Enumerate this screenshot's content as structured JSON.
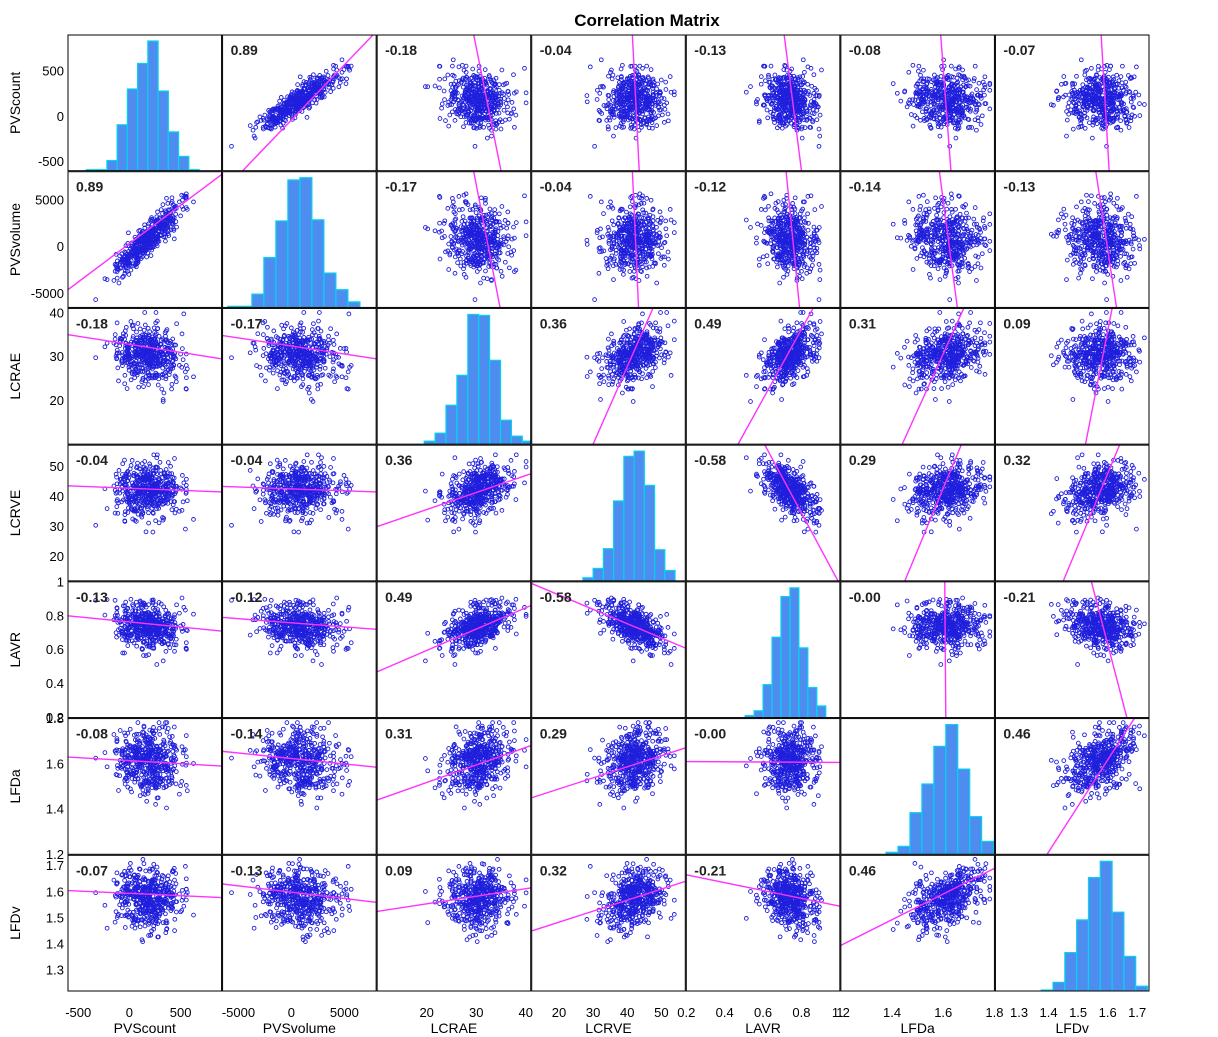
{
  "chart_data": {
    "type": "scatter",
    "title": "Correlation Matrix",
    "plot_kind": "scatter-matrix",
    "variables": [
      {
        "name": "PVScount",
        "range": [
          -600,
          900
        ],
        "y_ticks": [
          500,
          0,
          -500
        ],
        "x_ticks": [
          -500,
          0,
          500
        ]
      },
      {
        "name": "PVSvolume",
        "range": [
          -6500,
          8000
        ],
        "y_ticks": [
          5000,
          0,
          -5000
        ],
        "x_ticks": [
          -5000,
          0,
          5000
        ]
      },
      {
        "name": "LCRAE",
        "range": [
          10,
          41
        ],
        "y_ticks": [
          40,
          30,
          20
        ],
        "x_ticks": [
          20,
          30,
          40
        ]
      },
      {
        "name": "LCRVE",
        "range": [
          12,
          57
        ],
        "y_ticks": [
          50,
          40,
          30,
          20
        ],
        "x_ticks": [
          20,
          30,
          40,
          50
        ]
      },
      {
        "name": "LAVR",
        "range": [
          0.2,
          1.0
        ],
        "y_ticks": [
          1,
          0.8,
          0.6,
          0.4,
          0.2
        ],
        "x_ticks": [
          0.2,
          0.4,
          0.6,
          0.8,
          1
        ]
      },
      {
        "name": "LFDa",
        "range": [
          1.2,
          1.8
        ],
        "y_ticks": [
          1.8,
          1.6,
          1.4,
          1.2
        ],
        "x_ticks": [
          1.2,
          1.4,
          1.6,
          1.8
        ]
      },
      {
        "name": "LFDv",
        "range": [
          1.22,
          1.74
        ],
        "y_ticks": [
          1.7,
          1.6,
          1.5,
          1.4,
          1.3
        ],
        "x_ticks": [
          1.3,
          1.4,
          1.5,
          1.6,
          1.7
        ]
      }
    ],
    "x_tick_labels_per_column": [
      [
        "-500",
        "0",
        "500"
      ],
      [
        "-5000",
        "0",
        "5000"
      ],
      [
        "20",
        "30",
        "40"
      ],
      [
        "20",
        "30",
        "40",
        "50"
      ],
      [
        "0.2",
        "0.4",
        "0.6",
        "0.8",
        "1"
      ],
      [
        "1.2",
        "1.4",
        "1.6",
        "1.8"
      ],
      [
        "1.3",
        "1.4",
        "1.5",
        "1.6",
        "1.7"
      ]
    ],
    "correlations": [
      [
        null,
        0.89,
        -0.18,
        -0.04,
        -0.13,
        -0.08,
        -0.07
      ],
      [
        0.89,
        null,
        -0.17,
        -0.04,
        -0.12,
        -0.14,
        -0.13
      ],
      [
        -0.18,
        -0.17,
        null,
        0.36,
        0.49,
        0.31,
        0.09
      ],
      [
        -0.04,
        -0.04,
        0.36,
        null,
        -0.58,
        0.29,
        0.32
      ],
      [
        -0.13,
        -0.12,
        0.49,
        -0.58,
        null,
        -0.0,
        -0.21
      ],
      [
        -0.08,
        -0.14,
        0.31,
        0.29,
        -0.0,
        null,
        0.46
      ],
      [
        -0.07,
        -0.13,
        0.09,
        0.32,
        -0.21,
        0.46,
        null
      ]
    ],
    "correlation_labels": [
      [
        "",
        "0.89",
        "-0.18",
        "-0.04",
        "-0.13",
        "-0.08",
        "-0.07"
      ],
      [
        "0.89",
        "",
        "-0.17",
        "-0.04",
        "-0.12",
        "-0.14",
        "-0.13"
      ],
      [
        "-0.18",
        "-0.17",
        "",
        "0.36",
        "0.49",
        "0.31",
        "0.09"
      ],
      [
        "-0.04",
        "-0.04",
        "0.36",
        "",
        "-0.58",
        "0.29",
        "0.32"
      ],
      [
        "-0.13",
        "-0.12",
        "0.49",
        "-0.58",
        "",
        "-0.00",
        "-0.21"
      ],
      [
        "-0.08",
        "-0.14",
        "0.31",
        "0.29",
        "-0.00",
        "",
        "0.46"
      ],
      [
        "-0.07",
        "-0.13",
        "0.09",
        "0.32",
        "-0.21",
        "0.46",
        ""
      ]
    ],
    "fit_lines": {
      "0_1": [
        [
          -600,
          -4600
        ],
        [
          900,
          7700
        ]
      ],
      "0_2": [
        [
          -600,
          35
        ],
        [
          900,
          29.5
        ]
      ],
      "0_3": [
        [
          -600,
          43.5
        ],
        [
          900,
          41.5
        ]
      ],
      "0_4": [
        [
          -600,
          0.8
        ],
        [
          900,
          0.71
        ]
      ],
      "0_5": [
        [
          -600,
          1.63
        ],
        [
          900,
          1.59
        ]
      ],
      "0_6": [
        [
          -600,
          1.605
        ],
        [
          900,
          1.578
        ]
      ],
      "1_2": [
        [
          -6500,
          34.8
        ],
        [
          8000,
          29.5
        ]
      ],
      "1_3": [
        [
          -6500,
          43.3
        ],
        [
          8000,
          41.5
        ]
      ],
      "1_4": [
        [
          -6500,
          0.79
        ],
        [
          8000,
          0.72
        ]
      ],
      "1_5": [
        [
          -6500,
          1.655
        ],
        [
          8000,
          1.585
        ]
      ],
      "1_6": [
        [
          -6500,
          1.63
        ],
        [
          8000,
          1.56
        ]
      ],
      "2_3": [
        [
          10,
          30
        ],
        [
          41,
          47.5
        ]
      ],
      "2_4": [
        [
          10,
          0.47
        ],
        [
          41,
          0.86
        ]
      ],
      "2_5": [
        [
          10,
          1.44
        ],
        [
          41,
          1.68
        ]
      ],
      "2_6": [
        [
          10,
          1.525
        ],
        [
          41,
          1.615
        ]
      ],
      "3_4": [
        [
          12,
          0.99
        ],
        [
          57,
          0.61
        ]
      ],
      "3_5": [
        [
          12,
          1.45
        ],
        [
          57,
          1.67
        ]
      ],
      "3_6": [
        [
          12,
          1.45
        ],
        [
          57,
          1.64
        ]
      ],
      "4_5": [
        [
          0.2,
          1.61
        ],
        [
          1.0,
          1.606
        ]
      ],
      "4_6": [
        [
          0.2,
          1.665
        ],
        [
          1.0,
          1.545
        ]
      ],
      "5_6": [
        [
          1.2,
          1.395
        ],
        [
          1.8,
          1.69
        ]
      ]
    },
    "means": [
      180,
      800,
      30.5,
      42,
      0.74,
      1.61,
      1.575
    ],
    "stds": [
      150,
      1700,
      3.3,
      4.5,
      0.07,
      0.07,
      0.06
    ],
    "sample_size": 500,
    "histogram_bins": 12,
    "colors": {
      "points": "#1f1fdc",
      "fit_line": "#ff33ff",
      "bar_fill": "#4f8cf0",
      "bar_edge": "#00d4ee",
      "panel_border": "#000000"
    },
    "grid": false,
    "legend": "none"
  }
}
